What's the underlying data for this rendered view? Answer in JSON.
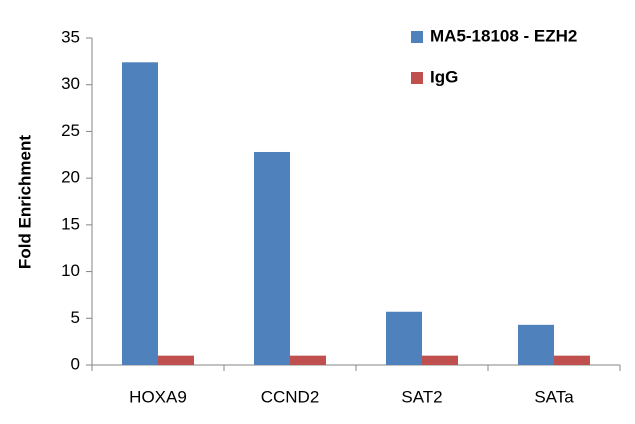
{
  "chart_data": {
    "type": "bar",
    "y_label": "Fold Enrichment",
    "categories": [
      "HOXA9",
      "CCND2",
      "SAT2",
      "SATa"
    ],
    "series": [
      {
        "name": "MA5-18108 - EZH2",
        "color": "#4f81bd",
        "values": [
          32.4,
          22.8,
          5.7,
          4.3
        ]
      },
      {
        "name": "IgG",
        "color": "#c0504d",
        "values": [
          1,
          1,
          1,
          1
        ]
      }
    ],
    "ylim": [
      0,
      35
    ],
    "yticks": [
      0,
      5,
      10,
      15,
      20,
      25,
      30,
      35
    ],
    "grid": false,
    "legend": "top-right"
  }
}
